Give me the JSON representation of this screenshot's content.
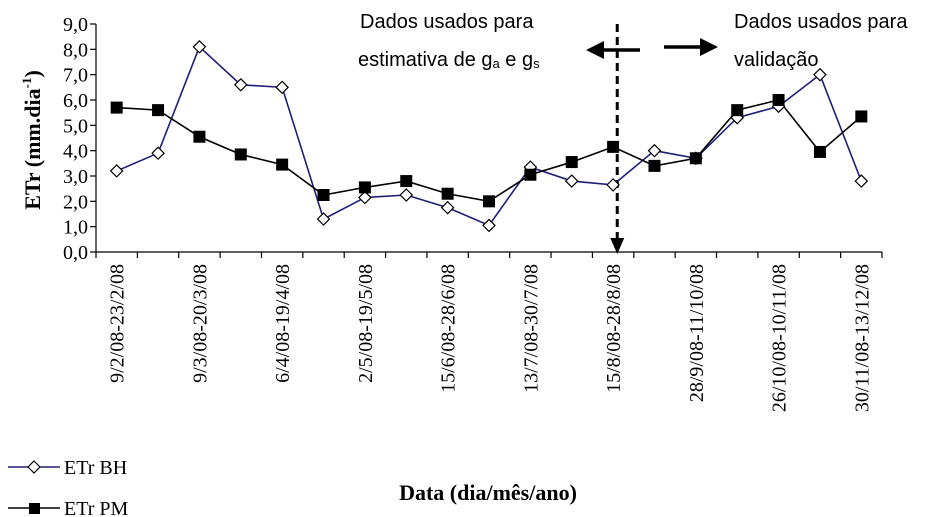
{
  "chart_data": {
    "type": "line",
    "ylabel": "ETr (mm.dia",
    "ylabel_sup": "-1",
    "ylabel_close": ")",
    "xlabel": "Data (dia/mês/ano)",
    "ylim": [
      0,
      9
    ],
    "yticks": [
      "0,0",
      "1,0",
      "2,0",
      "3,0",
      "4,0",
      "5,0",
      "6,0",
      "7,0",
      "8,0",
      "9,0"
    ],
    "x_count": 19,
    "x_tick_labels": [
      {
        "i": 0,
        "label": "9/2/08-23/2/08"
      },
      {
        "i": 2,
        "label": "9/3/08-20/3/08"
      },
      {
        "i": 4,
        "label": "6/4/08-19/4/08"
      },
      {
        "i": 6,
        "label": "2/5/08-19/5/08"
      },
      {
        "i": 8,
        "label": "15/6/08-28/6/08"
      },
      {
        "i": 10,
        "label": "13/7/08-30/7/08"
      },
      {
        "i": 12,
        "label": "15/8/08-28/8/08"
      },
      {
        "i": 14,
        "label": "28/9/08-11/10/08"
      },
      {
        "i": 16,
        "label": "26/10/08-10/11/08"
      },
      {
        "i": 18,
        "label": "30/11/08-13/12/08"
      }
    ],
    "series": [
      {
        "name": "ETr BH",
        "marker": "open-diamond",
        "color": "#1f1f7a",
        "values": [
          3.2,
          3.9,
          8.1,
          6.6,
          6.5,
          1.3,
          2.15,
          2.25,
          1.75,
          1.05,
          3.35,
          2.8,
          2.65,
          4.0,
          3.7,
          5.3,
          5.75,
          7.0,
          2.8
        ]
      },
      {
        "name": "ETr PM",
        "marker": "filled-square",
        "color": "#000000",
        "values": [
          5.7,
          5.6,
          4.55,
          3.85,
          3.45,
          2.25,
          2.55,
          2.8,
          2.3,
          2.0,
          3.05,
          3.55,
          4.15,
          3.4,
          3.7,
          5.6,
          6.0,
          3.95,
          5.35
        ]
      }
    ],
    "divider_after_index": 12.6,
    "annotations": {
      "left_line1": "Dados usados para",
      "left_line2": "estimativa de g",
      "left_sub_a": "a",
      "left_mid": " e g",
      "left_sub_s": "s",
      "right_line1": "Dados usados para",
      "right_line2": "validação"
    },
    "legend_position": "bottom-left"
  }
}
